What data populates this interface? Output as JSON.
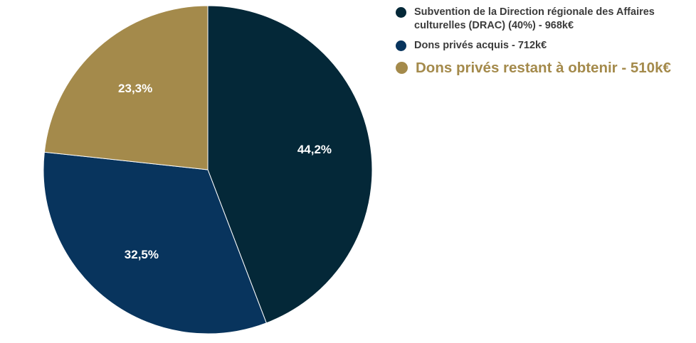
{
  "chart_data": {
    "type": "pie",
    "title": "",
    "slices": [
      {
        "label": "Subvention de la Direction régionale des Affaires culturelles (DRAC) (40%) - 968k€",
        "value": 968,
        "percent_label": "44,2%",
        "color": "#042838"
      },
      {
        "label": "Dons privés acquis - 712k€",
        "value": 712,
        "percent_label": "32,5%",
        "color": "#08345d"
      },
      {
        "label": "Dons privés restant à obtenir - 510k€",
        "value": 510,
        "percent_label": "23,3%",
        "color": "#a48a4b"
      }
    ],
    "start_angle": "12 o'clock",
    "direction": "clockwise",
    "legend_position": "right"
  },
  "legend": {
    "items": [
      {
        "text": "Subvention de la Direction régionale des Affaires culturelles (DRAC) (40%) - 968k€",
        "color": "#042838"
      },
      {
        "text": "Dons privés acquis - 712k€",
        "color": "#08345d"
      },
      {
        "text": "Dons privés restant à obtenir - 510k€",
        "color": "#a48a4b"
      }
    ]
  }
}
